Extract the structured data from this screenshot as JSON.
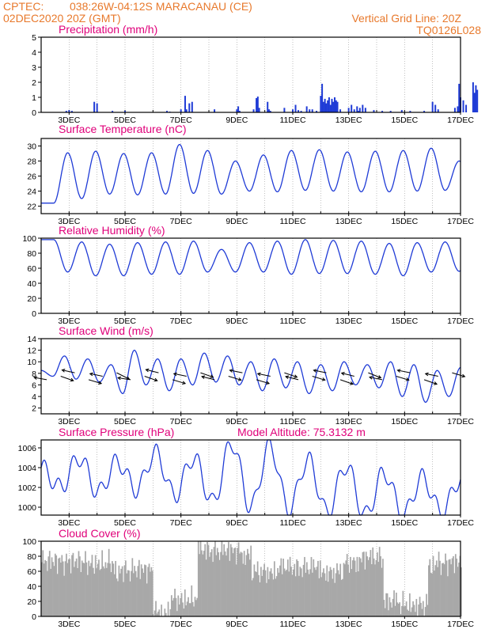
{
  "header": {
    "line1_left": "CPTEC:",
    "line1_center": "038:26W-04:12S   MARACANAU (CE)",
    "line2_left": "02DEC2020 20Z (GMT)",
    "line2_right": "Vertical Grid Line: 20Z",
    "code": "TQ0126L028"
  },
  "colors": {
    "header": "#e8792c",
    "title": "#e0007a",
    "line": "#1f3bd6",
    "cloud": "#a8a8a8",
    "wind_arrow": "#000000"
  },
  "x_ticks": [
    "3DEC",
    "5DEC",
    "7DEC",
    "9DEC",
    "11DEC",
    "13DEC",
    "15DEC",
    "17DEC"
  ],
  "chart_data": [
    {
      "id": "precip",
      "type": "bar",
      "title": "Precipitation (mm/h)",
      "ylim": [
        0,
        5
      ],
      "yticks": [
        "0",
        "1",
        "2",
        "3",
        "4",
        "5"
      ],
      "x_unit": "days since 02DEC2020 20Z",
      "x": [
        0.9,
        1.0,
        1.1,
        1.9,
        2.0,
        2.55,
        3.0,
        4.5,
        4.6,
        5.0,
        5.15,
        5.2,
        5.3,
        5.4,
        6.2,
        7.0,
        7.05,
        7.1,
        7.6,
        7.7,
        7.75,
        7.8,
        8.1,
        8.15,
        8.2,
        8.7,
        9.0,
        9.1,
        9.2,
        9.3,
        9.5,
        9.6,
        9.7,
        9.85,
        10.0,
        10.05,
        10.1,
        10.15,
        10.2,
        10.25,
        10.3,
        10.35,
        10.4,
        10.45,
        10.5,
        10.55,
        10.6,
        10.7,
        11.0,
        11.1,
        11.2,
        11.3,
        11.35,
        11.4,
        11.5,
        11.6,
        11.9,
        12.2,
        12.5,
        12.9,
        13.2,
        13.7,
        14.0,
        14.1,
        14.2,
        14.8,
        14.9,
        14.95,
        15.0,
        15.1,
        15.2,
        15.45,
        15.5,
        15.55,
        15.6
      ],
      "values": [
        0.1,
        0.15,
        0.1,
        0.7,
        0.6,
        0.1,
        0.1,
        0.1,
        0.05,
        0.2,
        1.1,
        0.2,
        0.6,
        0.7,
        0.2,
        0.2,
        0.4,
        0.1,
        0.2,
        0.95,
        1.05,
        0.3,
        0.7,
        0.2,
        0.1,
        0.3,
        0.2,
        0.5,
        0.15,
        0.1,
        0.4,
        0.2,
        0.2,
        0.1,
        1.1,
        1.9,
        0.7,
        0.9,
        0.6,
        0.8,
        1.0,
        0.5,
        0.9,
        0.7,
        1.0,
        0.8,
        0.7,
        0.2,
        0.3,
        0.5,
        0.2,
        0.4,
        0.1,
        0.3,
        0.5,
        0.3,
        0.15,
        0.1,
        0.1,
        0.15,
        0.1,
        0.1,
        0.7,
        0.5,
        0.2,
        0.3,
        0.4,
        1.9,
        1.0,
        0.8,
        0.5,
        2.0,
        1.3,
        1.8,
        1.5
      ]
    },
    {
      "id": "temp",
      "type": "line",
      "title": "Surface Temperature (nC)",
      "ylim": [
        21,
        31
      ],
      "yticks": [
        "22",
        "24",
        "26",
        "28",
        "30"
      ],
      "t_min": [
        22.4,
        23.0,
        23.6,
        23.5,
        23.6,
        23.7,
        23.6,
        24.0,
        23.9,
        24.1,
        24.0,
        23.9,
        23.9,
        24.0,
        24.1,
        24.0
      ],
      "t_max": [
        29.1,
        29.3,
        29.0,
        29.1,
        30.2,
        29.4,
        28.0,
        28.8,
        29.4,
        29.5,
        29.2,
        29.3,
        29.4,
        29.7,
        28.0
      ]
    },
    {
      "id": "rh",
      "type": "line",
      "title": "Relative Humidity (%)",
      "ylim": [
        0,
        100
      ],
      "yticks": [
        "0",
        "20",
        "40",
        "60",
        "80",
        "100"
      ],
      "rh_min": [
        55,
        50,
        50,
        52,
        52,
        55,
        55,
        55,
        52,
        53,
        53,
        52,
        50,
        55,
        56
      ],
      "rh_max": [
        98,
        95,
        92,
        94,
        95,
        96,
        85,
        94,
        96,
        98,
        97,
        96,
        93,
        94,
        95,
        90
      ]
    },
    {
      "id": "wind",
      "type": "line",
      "title": "Surface Wind (m/s)",
      "ylim": [
        1,
        14
      ],
      "yticks": [
        "2",
        "4",
        "6",
        "8",
        "10",
        "12",
        "14"
      ],
      "speed": [
        8.5,
        7.5,
        11.0,
        7.0,
        10.5,
        6.5,
        9.5,
        4.5,
        12.0,
        6.0,
        10.5,
        5.0,
        10.5,
        6.0,
        11.5,
        6.5,
        11.0,
        6.0,
        10.0,
        5.0,
        10.5,
        5.5,
        10.0,
        4.5,
        9.5,
        5.0,
        10.0,
        6.0,
        9.5,
        5.5,
        10.0,
        4.0,
        9.5,
        3.0,
        8.5,
        4.0,
        9.0
      ]
    },
    {
      "id": "psfc",
      "type": "line",
      "title": "Surface Pressure (hPa)",
      "annotation": "Model Altitude: 75.3132 m",
      "ylim": [
        999.2,
        1006.8
      ],
      "yticks": [
        "1000",
        "1002",
        "1004",
        "1006"
      ],
      "p_peaks": [
        1004.0,
        1005.0,
        1004.6,
        1005.5,
        1005.0,
        1006.5,
        1006.2,
        1004.8,
        1004.2,
        1003.5,
        1003.0,
        1002.8
      ],
      "p_troughs": [
        1002.0,
        1001.5,
        1001.8,
        1001.2,
        1000.5,
        1000.0,
        999.8,
        999.5,
        999.2,
        999.2,
        999.5
      ]
    },
    {
      "id": "cloud",
      "type": "bar",
      "title": "Cloud Cover (%)",
      "ylim": [
        0,
        100
      ],
      "yticks": [
        "0",
        "20",
        "40",
        "60",
        "80",
        "100"
      ],
      "segments": [
        {
          "from": 0.0,
          "to": 2.6,
          "level": 72
        },
        {
          "from": 2.6,
          "to": 4.0,
          "level": 60
        },
        {
          "from": 4.0,
          "to": 4.6,
          "level": 6
        },
        {
          "from": 4.6,
          "to": 5.6,
          "level": 25
        },
        {
          "from": 5.6,
          "to": 7.5,
          "level": 85
        },
        {
          "from": 7.5,
          "to": 10.8,
          "level": 62
        },
        {
          "from": 10.8,
          "to": 12.2,
          "level": 75
        },
        {
          "from": 12.2,
          "to": 13.8,
          "level": 18
        },
        {
          "from": 13.8,
          "to": 15.6,
          "level": 70
        }
      ]
    }
  ]
}
